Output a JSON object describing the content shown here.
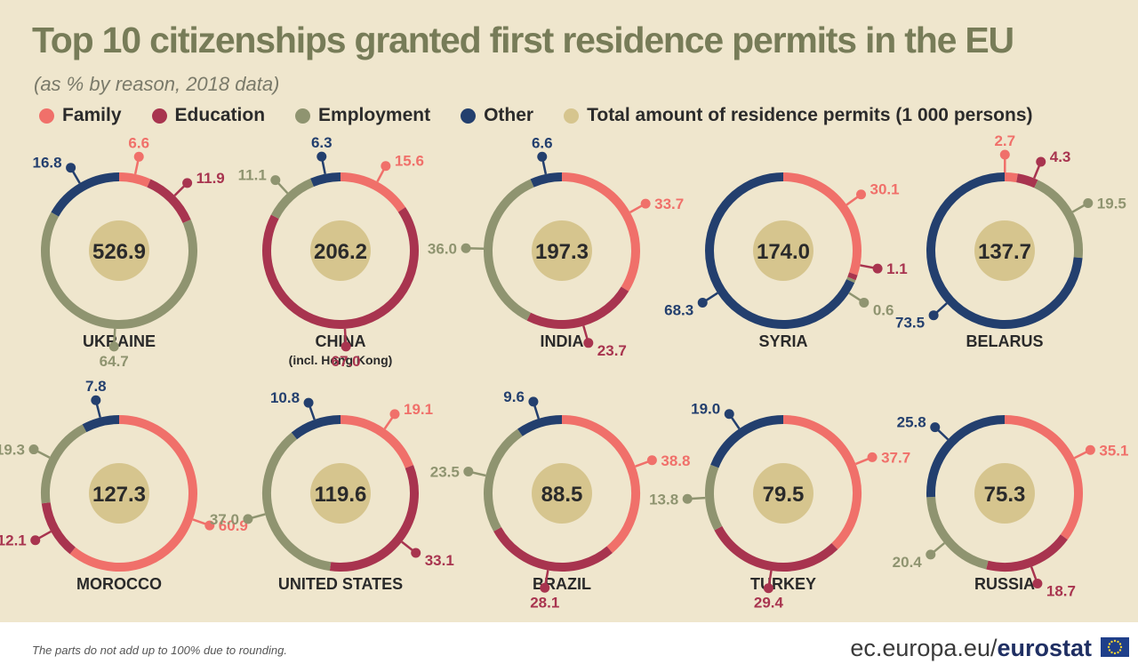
{
  "title": "Top 10 citizenships granted first residence permits in the EU",
  "subtitle": "(as % by reason, 2018 data)",
  "legend": [
    {
      "label": "Family",
      "color": "#f0706a"
    },
    {
      "label": "Education",
      "color": "#a8344f"
    },
    {
      "label": "Employment",
      "color": "#8f9470"
    },
    {
      "label": "Other",
      "color": "#233f6e"
    },
    {
      "label": "Total amount of residence permits (1 000 persons)",
      "color": "#d6c58e"
    }
  ],
  "footnote": "The parts do not add up to 100% due to rounding.",
  "brand": {
    "site": "ec.europa.eu/",
    "name": "eurostat"
  },
  "colors": {
    "family": "#f0706a",
    "education": "#a8344f",
    "employment": "#8f9470",
    "other": "#233f6e",
    "total": "#d6c58e",
    "background": "#efe6cd"
  },
  "chart_data": {
    "type": "donut",
    "series_order": [
      "Family",
      "Education",
      "Employment",
      "Other"
    ],
    "countries": [
      {
        "name": "UKRAINE",
        "total": "526.9",
        "family": 6.6,
        "education": 11.9,
        "employment": 64.7,
        "other": 16.8
      },
      {
        "name": "CHINA",
        "subname": "(incl. Hong Kong)",
        "total": "206.2",
        "family": 15.6,
        "education": 67.0,
        "employment": 11.1,
        "other": 6.3
      },
      {
        "name": "INDIA",
        "total": "197.3",
        "family": 33.7,
        "education": 23.7,
        "employment": 36.0,
        "other": 6.6
      },
      {
        "name": "SYRIA",
        "total": "174.0",
        "family": 30.1,
        "education": 1.1,
        "employment": 0.6,
        "other": 68.3
      },
      {
        "name": "BELARUS",
        "total": "137.7",
        "family": 2.7,
        "education": 4.3,
        "employment": 19.5,
        "other": 73.5
      },
      {
        "name": "MOROCCO",
        "total": "127.3",
        "family": 60.9,
        "education": 12.1,
        "employment": 19.3,
        "other": 7.8
      },
      {
        "name": "UNITED STATES",
        "total": "119.6",
        "family": 19.1,
        "education": 33.1,
        "employment": 37.0,
        "other": 10.8
      },
      {
        "name": "BRAZIL",
        "total": "88.5",
        "family": 38.8,
        "education": 28.1,
        "employment": 23.5,
        "other": 9.6
      },
      {
        "name": "TURKEY",
        "total": "79.5",
        "family": 37.7,
        "education": 29.4,
        "employment": 13.8,
        "other": 19.0
      },
      {
        "name": "RUSSIA",
        "total": "75.3",
        "family": 35.1,
        "education": 18.7,
        "employment": 20.4,
        "other": 25.8
      }
    ]
  }
}
